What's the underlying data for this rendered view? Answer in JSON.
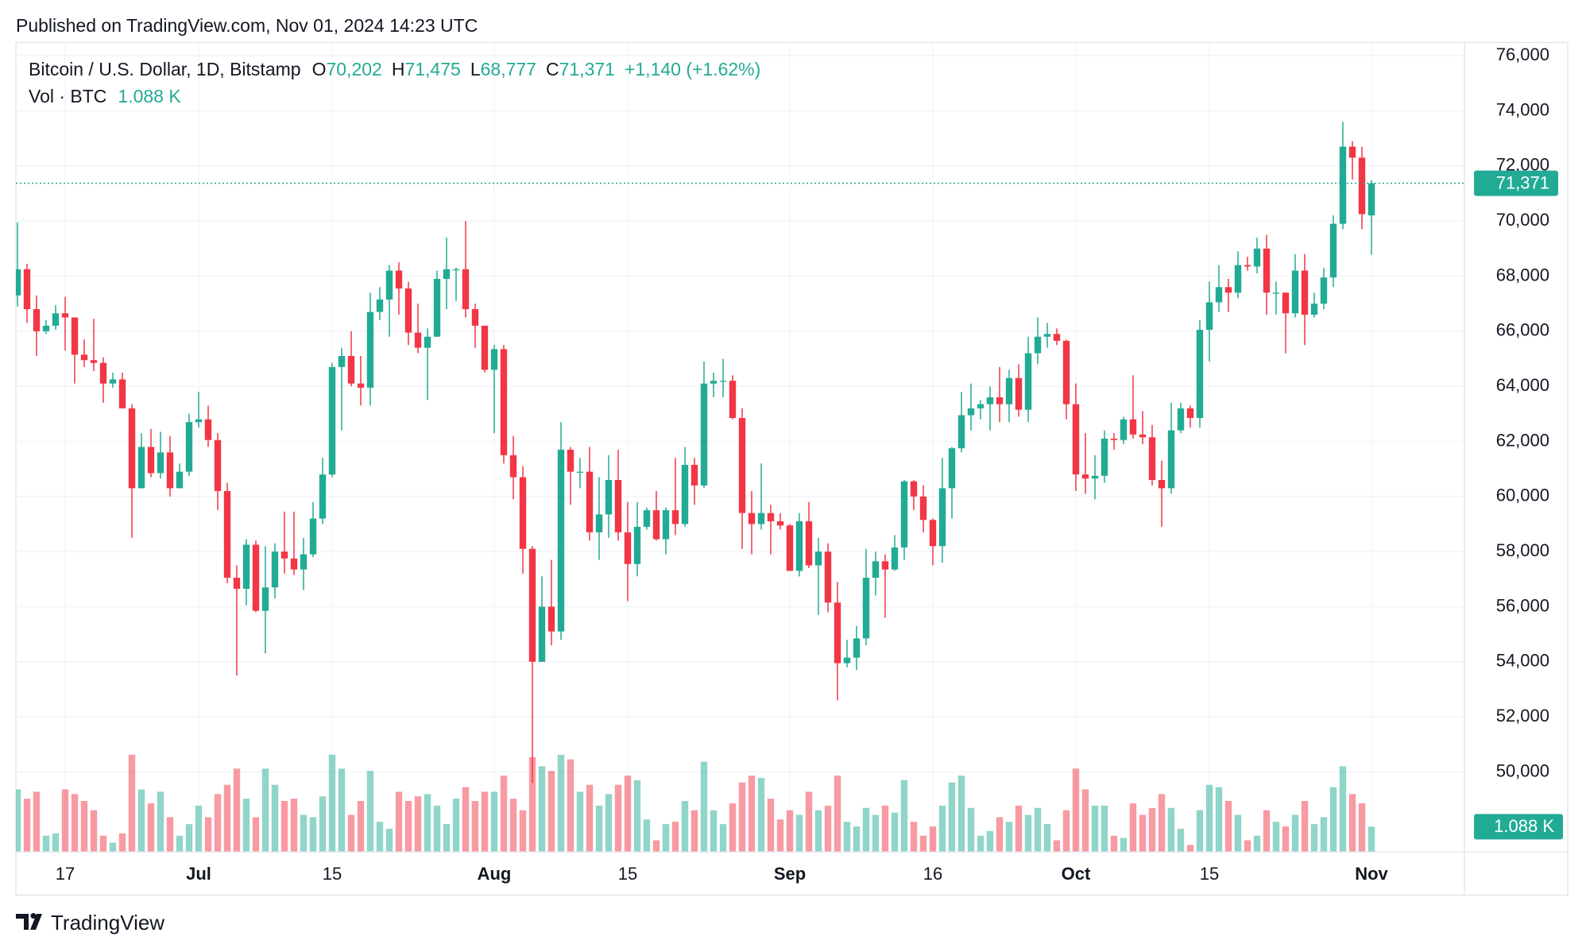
{
  "header": {
    "published": "Published on TradingView.com, Nov 01, 2024 14:23 UTC"
  },
  "chart_data": {
    "type": "candlestick",
    "title": "Bitcoin / U.S. Dollar, 1D, Bitstamp",
    "ohlc_legend": [
      {
        "key": "O",
        "value": 70202,
        "label": "70,202"
      },
      {
        "key": "H",
        "value": 71475,
        "label": "71,475"
      },
      {
        "key": "L",
        "value": 68777,
        "label": "68,777"
      },
      {
        "key": "C",
        "value": 71371,
        "label": "71,371"
      }
    ],
    "change": "+1,140 (+1.62%)",
    "volume_title": "Vol · BTC",
    "categories": [
      null,
      null,
      null,
      null,
      null,
      "17",
      null,
      null,
      null,
      null,
      null,
      null,
      null,
      null,
      null,
      null,
      null,
      null,
      null,
      "Jul",
      null,
      null,
      null,
      null,
      null,
      null,
      null,
      null,
      null,
      null,
      null,
      null,
      null,
      "15",
      null,
      null,
      null,
      null,
      null,
      null,
      null,
      null,
      null,
      null,
      null,
      null,
      null,
      null,
      null,
      null,
      "Aug",
      null,
      null,
      null,
      null,
      null,
      null,
      null,
      null,
      null,
      null,
      null,
      null,
      null,
      "15",
      null,
      null,
      null,
      null,
      null,
      null,
      null,
      null,
      null,
      null,
      null,
      null,
      null,
      null,
      null,
      null,
      "Sep",
      null,
      null,
      null,
      null,
      null,
      null,
      null,
      null,
      null,
      null,
      null,
      null,
      null,
      null,
      "16",
      null,
      null,
      null,
      null,
      null,
      null,
      null,
      null,
      null,
      null,
      null,
      null,
      null,
      null,
      "Oct",
      null,
      null,
      null,
      null,
      null,
      null,
      null,
      null,
      null,
      null,
      null,
      null,
      null,
      "15",
      null,
      null,
      null,
      null,
      null,
      null,
      null,
      null,
      null,
      null,
      null,
      null,
      null,
      null,
      null,
      null,
      "Nov"
    ],
    "ohlc": [
      [
        67300,
        69950,
        66900,
        68250
      ],
      [
        68250,
        68450,
        66300,
        66800
      ],
      [
        66800,
        67300,
        65100,
        66000
      ],
      [
        66000,
        66400,
        65900,
        66200
      ],
      [
        66200,
        66950,
        66050,
        66650
      ],
      [
        66650,
        67250,
        65300,
        66500
      ],
      [
        66500,
        66500,
        64100,
        65150
      ],
      [
        65150,
        65700,
        64700,
        64950
      ],
      [
        64950,
        66450,
        64550,
        64850
      ],
      [
        64850,
        65050,
        63400,
        64100
      ],
      [
        64100,
        64500,
        63950,
        64250
      ],
      [
        64250,
        64500,
        63200,
        63200
      ],
      [
        63200,
        63350,
        58500,
        60300
      ],
      [
        60300,
        62300,
        60300,
        61800
      ],
      [
        61800,
        62450,
        60700,
        60850
      ],
      [
        60850,
        62350,
        60650,
        61600
      ],
      [
        61600,
        62200,
        60000,
        60300
      ],
      [
        60300,
        61200,
        60300,
        60900
      ],
      [
        60900,
        63000,
        60750,
        62700
      ],
      [
        62700,
        63800,
        62500,
        62800
      ],
      [
        62800,
        63300,
        61800,
        62050
      ],
      [
        62050,
        62300,
        59500,
        60200
      ],
      [
        60200,
        60500,
        56850,
        57050
      ],
      [
        57050,
        57500,
        53500,
        56650
      ],
      [
        56650,
        58450,
        56050,
        58250
      ],
      [
        58250,
        58400,
        55800,
        55850
      ],
      [
        55850,
        58200,
        54300,
        56700
      ],
      [
        56700,
        58300,
        56300,
        58000
      ],
      [
        58000,
        59450,
        57200,
        57750
      ],
      [
        57750,
        59450,
        57150,
        57350
      ],
      [
        57350,
        58500,
        56600,
        57900
      ],
      [
        57900,
        59800,
        57800,
        59200
      ],
      [
        59200,
        61400,
        59000,
        60800
      ],
      [
        60800,
        64850,
        60700,
        64700
      ],
      [
        64700,
        65400,
        62400,
        65100
      ],
      [
        65100,
        66000,
        64000,
        64100
      ],
      [
        64100,
        65100,
        63300,
        63950
      ],
      [
        63950,
        67400,
        63300,
        66700
      ],
      [
        66700,
        67600,
        66400,
        67150
      ],
      [
        67150,
        68400,
        65800,
        68200
      ],
      [
        68200,
        68500,
        66600,
        67550
      ],
      [
        67550,
        67800,
        65500,
        65950
      ],
      [
        65950,
        67000,
        65200,
        65400
      ],
      [
        65400,
        66100,
        63500,
        65800
      ],
      [
        65800,
        68200,
        65800,
        67900
      ],
      [
        67900,
        69400,
        66800,
        68250
      ],
      [
        68250,
        68300,
        67100,
        68250
      ],
      [
        68250,
        70000,
        66500,
        66800
      ],
      [
        66800,
        67000,
        65400,
        66200
      ],
      [
        66200,
        66200,
        64500,
        64600
      ],
      [
        64600,
        65500,
        62300,
        65350
      ],
      [
        65350,
        65500,
        61200,
        61500
      ],
      [
        61500,
        62200,
        59900,
        60700
      ],
      [
        60700,
        61100,
        57200,
        58100
      ],
      [
        58100,
        58200,
        49600,
        54000
      ],
      [
        54000,
        57100,
        54000,
        56000
      ],
      [
        56000,
        57700,
        54600,
        55100
      ],
      [
        55100,
        62700,
        54800,
        61700
      ],
      [
        61700,
        61800,
        59700,
        60900
      ],
      [
        60900,
        61400,
        60300,
        60900
      ],
      [
        60900,
        61800,
        58400,
        58700
      ],
      [
        58700,
        60700,
        57700,
        59350
      ],
      [
        59350,
        61500,
        58500,
        60600
      ],
      [
        60600,
        61700,
        58400,
        58700
      ],
      [
        58700,
        59800,
        56200,
        57550
      ],
      [
        57550,
        59800,
        57100,
        58900
      ],
      [
        58900,
        59600,
        58800,
        59500
      ],
      [
        59500,
        60200,
        58400,
        58450
      ],
      [
        58450,
        59600,
        57900,
        59500
      ],
      [
        59500,
        61400,
        58600,
        59000
      ],
      [
        59000,
        61800,
        58900,
        61150
      ],
      [
        61150,
        61400,
        59700,
        60400
      ],
      [
        60400,
        64900,
        60300,
        64100
      ],
      [
        64100,
        64500,
        63600,
        64200
      ],
      [
        64200,
        65000,
        63600,
        64200
      ],
      [
        64200,
        64400,
        62800,
        62850
      ],
      [
        62850,
        63200,
        58100,
        59400
      ],
      [
        59400,
        60200,
        57900,
        59000
      ],
      [
        59000,
        61200,
        58800,
        59400
      ],
      [
        59400,
        59700,
        57900,
        59100
      ],
      [
        59100,
        59400,
        58800,
        58950
      ],
      [
        58950,
        59000,
        57300,
        57300
      ],
      [
        57300,
        59400,
        57100,
        59100
      ],
      [
        59100,
        59800,
        57400,
        57500
      ],
      [
        57500,
        58500,
        55700,
        58000
      ],
      [
        58000,
        58300,
        55800,
        56150
      ],
      [
        56150,
        56900,
        52600,
        53950
      ],
      [
        53950,
        54800,
        53800,
        54150
      ],
      [
        54150,
        55300,
        53700,
        54850
      ],
      [
        54850,
        58100,
        54600,
        57050
      ],
      [
        57050,
        58000,
        56400,
        57650
      ],
      [
        57650,
        57900,
        55600,
        57350
      ],
      [
        57350,
        58600,
        57300,
        58150
      ],
      [
        58150,
        60600,
        57700,
        60550
      ],
      [
        60550,
        60600,
        59500,
        60000
      ],
      [
        60000,
        60400,
        58700,
        59150
      ],
      [
        59150,
        59200,
        57500,
        58200
      ],
      [
        58200,
        61400,
        57600,
        60300
      ],
      [
        60300,
        61800,
        59200,
        61750
      ],
      [
        61750,
        63800,
        61600,
        62950
      ],
      [
        62950,
        64100,
        62400,
        63200
      ],
      [
        63200,
        63500,
        62800,
        63350
      ],
      [
        63350,
        64000,
        62400,
        63600
      ],
      [
        63600,
        64700,
        62700,
        63350
      ],
      [
        63350,
        64600,
        62700,
        64300
      ],
      [
        64300,
        64800,
        62900,
        63150
      ],
      [
        63150,
        65800,
        62700,
        65200
      ],
      [
        65200,
        66500,
        64800,
        65800
      ],
      [
        65800,
        66300,
        65400,
        65900
      ],
      [
        65900,
        66100,
        65500,
        65650
      ],
      [
        65650,
        65700,
        62800,
        63350
      ],
      [
        63350,
        64100,
        60200,
        60800
      ],
      [
        60800,
        62300,
        60100,
        60650
      ],
      [
        60650,
        61500,
        59900,
        60750
      ],
      [
        60750,
        62400,
        60500,
        62100
      ],
      [
        62100,
        62300,
        61700,
        62050
      ],
      [
        62050,
        62900,
        61900,
        62800
      ],
      [
        62800,
        64400,
        62100,
        62250
      ],
      [
        62250,
        63100,
        61900,
        62150
      ],
      [
        62150,
        62600,
        60400,
        60600
      ],
      [
        60600,
        61300,
        58900,
        60300
      ],
      [
        60300,
        63400,
        60100,
        62400
      ],
      [
        62400,
        63400,
        62300,
        63200
      ],
      [
        63200,
        63300,
        62500,
        62850
      ],
      [
        62850,
        66400,
        62500,
        66050
      ],
      [
        66050,
        67800,
        64900,
        67050
      ],
      [
        67050,
        68400,
        66700,
        67600
      ],
      [
        67600,
        67900,
        66700,
        67400
      ],
      [
        67400,
        68900,
        67200,
        68400
      ],
      [
        68400,
        68700,
        68200,
        68350
      ],
      [
        68350,
        69400,
        68100,
        69000
      ],
      [
        69000,
        69500,
        66600,
        67400
      ],
      [
        67400,
        67800,
        66600,
        67400
      ],
      [
        67400,
        67400,
        65200,
        66650
      ],
      [
        66650,
        68800,
        66500,
        68200
      ],
      [
        68200,
        68800,
        65500,
        66600
      ],
      [
        66600,
        67400,
        66500,
        67000
      ],
      [
        67000,
        68300,
        66800,
        67950
      ],
      [
        67950,
        70200,
        67600,
        69900
      ],
      [
        69900,
        73600,
        69700,
        72700
      ],
      [
        72700,
        72900,
        71500,
        72300
      ],
      [
        72300,
        72700,
        69700,
        70250
      ],
      [
        70202,
        71475,
        68777,
        71371
      ]
    ],
    "volume": [
      2700,
      2300,
      2600,
      700,
      800,
      2700,
      2500,
      2200,
      1800,
      700,
      400,
      800,
      4200,
      2700,
      2100,
      2600,
      1500,
      700,
      1200,
      2000,
      1500,
      2500,
      2900,
      3600,
      2300,
      1500,
      3600,
      2900,
      2200,
      2300,
      1600,
      1500,
      2400,
      4200,
      3600,
      1600,
      2200,
      3500,
      1300,
      1000,
      2600,
      2200,
      2400,
      2500,
      2000,
      1200,
      2300,
      2800,
      2200,
      2600,
      2600,
      3300,
      2300,
      1800,
      4100,
      3700,
      3500,
      4200,
      4000,
      2600,
      2900,
      2000,
      2500,
      2900,
      3300,
      3100,
      1400,
      500,
      1200,
      1300,
      2200,
      1800,
      3900,
      1800,
      1200,
      2100,
      3000,
      3300,
      3200,
      2300,
      1400,
      1800,
      1600,
      2600,
      1800,
      2000,
      3300,
      1300,
      1100,
      1900,
      1600,
      2000,
      1700,
      3100,
      1300,
      700,
      1100,
      2000,
      3000,
      3300,
      1900,
      700,
      900,
      1500,
      1300,
      2000,
      1600,
      1900,
      1200,
      500,
      1800,
      3600,
      2700,
      2000,
      2000,
      700,
      600,
      2100,
      1600,
      1900,
      2500,
      1900,
      1000,
      300,
      1800,
      2900,
      2800,
      2200,
      1600,
      500,
      700,
      1800,
      1300,
      1100,
      1600,
      2200,
      1200,
      1500,
      2800,
      3700,
      2500,
      2100,
      1088
    ],
    "last_price": {
      "value": 71371,
      "label": "71,371"
    },
    "last_volume": {
      "value": 1088,
      "label": "1.088 K"
    },
    "ylim": [
      47100,
      76480
    ],
    "yticks": [
      {
        "value": 50000,
        "label": "50,000"
      },
      {
        "value": 52000,
        "label": "52,000"
      },
      {
        "value": 54000,
        "label": "54,000"
      },
      {
        "value": 56000,
        "label": "56,000"
      },
      {
        "value": 58000,
        "label": "58,000"
      },
      {
        "value": 60000,
        "label": "60,000"
      },
      {
        "value": 62000,
        "label": "62,000"
      },
      {
        "value": 64000,
        "label": "64,000"
      },
      {
        "value": 66000,
        "label": "66,000"
      },
      {
        "value": 68000,
        "label": "68,000"
      },
      {
        "value": 70000,
        "label": "70,000"
      },
      {
        "value": 72000,
        "label": "72,000"
      },
      {
        "value": 74000,
        "label": "74,000"
      },
      {
        "value": 76000,
        "label": "76,000"
      }
    ],
    "volume_ylim": [
      0,
      35000
    ],
    "colors": {
      "up": "#22ab94",
      "down": "#f23645"
    },
    "grid": true
  },
  "footer": {
    "brand": "TradingView"
  }
}
